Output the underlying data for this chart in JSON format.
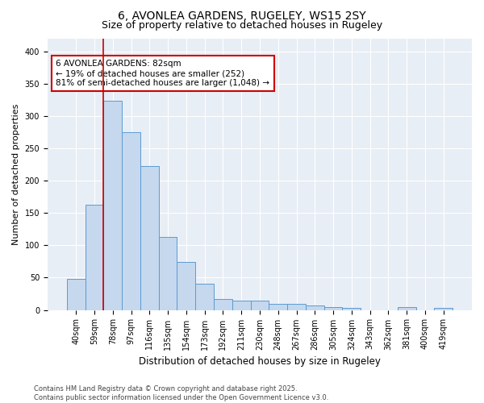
{
  "title": "6, AVONLEA GARDENS, RUGELEY, WS15 2SY",
  "subtitle": "Size of property relative to detached houses in Rugeley",
  "xlabel": "Distribution of detached houses by size in Rugeley",
  "ylabel": "Number of detached properties",
  "categories": [
    "40sqm",
    "59sqm",
    "78sqm",
    "97sqm",
    "116sqm",
    "135sqm",
    "154sqm",
    "173sqm",
    "192sqm",
    "211sqm",
    "230sqm",
    "248sqm",
    "267sqm",
    "286sqm",
    "305sqm",
    "324sqm",
    "343sqm",
    "362sqm",
    "381sqm",
    "400sqm",
    "419sqm"
  ],
  "values": [
    48,
    163,
    323,
    275,
    222,
    113,
    74,
    40,
    17,
    15,
    15,
    10,
    9,
    7,
    5,
    3,
    0,
    0,
    4,
    0,
    3
  ],
  "bar_color": "#c5d8ed",
  "bar_edge_color": "#5b9bd5",
  "vline_x_index": 2,
  "vline_color": "#cc0000",
  "annotation_text": "6 AVONLEA GARDENS: 82sqm\n← 19% of detached houses are smaller (252)\n81% of semi-detached houses are larger (1,048) →",
  "annotation_box_color": "#ffffff",
  "annotation_box_edge": "#cc0000",
  "ylim": [
    0,
    420
  ],
  "yticks": [
    0,
    50,
    100,
    150,
    200,
    250,
    300,
    350,
    400
  ],
  "bg_color": "#e8eef5",
  "footer": "Contains HM Land Registry data © Crown copyright and database right 2025.\nContains public sector information licensed under the Open Government Licence v3.0.",
  "title_fontsize": 10,
  "subtitle_fontsize": 9,
  "xlabel_fontsize": 8.5,
  "ylabel_fontsize": 8,
  "tick_fontsize": 7,
  "annot_fontsize": 7.5,
  "footer_fontsize": 6
}
